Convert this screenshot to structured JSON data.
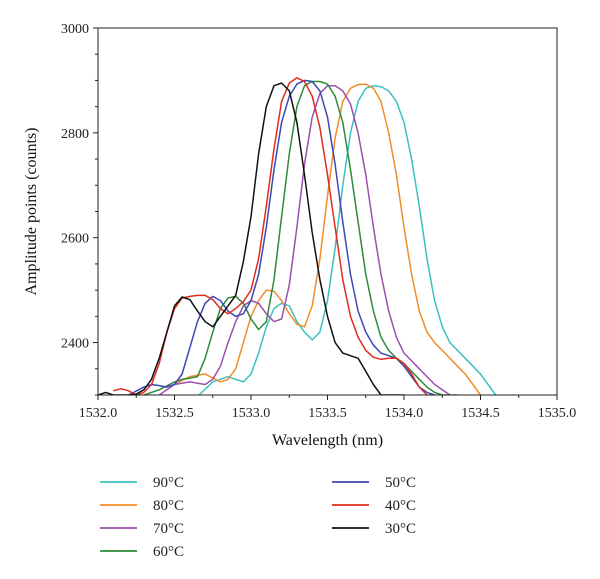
{
  "chart_data": {
    "type": "line",
    "title": "",
    "xlabel": "Wavelength (nm)",
    "ylabel": "Amplitude points (counts)",
    "xlim": [
      1532.0,
      1535.0
    ],
    "ylim": [
      2300,
      3000
    ],
    "xticks": [
      1532.0,
      1532.5,
      1533.0,
      1533.5,
      1534.0,
      1534.5,
      1535.0
    ],
    "xtick_labels": [
      "1532.0",
      "1532.5",
      "1533.0",
      "1533.5",
      "1534.0",
      "1534.5",
      "1535.0"
    ],
    "yticks": [
      2400,
      2600,
      2800,
      3000
    ],
    "ytick_labels": [
      "2400",
      "2600",
      "2800",
      "3000"
    ],
    "grid": false,
    "legend_placement": "below",
    "series": [
      {
        "name": "90°C",
        "color": "#3cc0c0",
        "x": [
          1532.66,
          1532.75,
          1532.85,
          1532.9,
          1532.95,
          1533.0,
          1533.05,
          1533.1,
          1533.15,
          1533.2,
          1533.25,
          1533.3,
          1533.35,
          1533.4,
          1533.45,
          1533.5,
          1533.55,
          1533.6,
          1533.65,
          1533.7,
          1533.75,
          1533.8,
          1533.85,
          1533.9,
          1533.95,
          1534.0,
          1534.05,
          1534.1,
          1534.15,
          1534.2,
          1534.25,
          1534.3,
          1534.35,
          1534.4,
          1534.45,
          1534.5,
          1534.55,
          1534.6
        ],
        "y": [
          2300,
          2325,
          2335,
          2330,
          2325,
          2340,
          2380,
          2430,
          2465,
          2475,
          2470,
          2440,
          2420,
          2405,
          2420,
          2480,
          2580,
          2700,
          2800,
          2860,
          2885,
          2890,
          2888,
          2880,
          2860,
          2820,
          2750,
          2660,
          2560,
          2480,
          2430,
          2400,
          2385,
          2370,
          2355,
          2340,
          2320,
          2300
        ]
      },
      {
        "name": "80°C",
        "color": "#f28c28",
        "x": [
          1532.5,
          1532.6,
          1532.7,
          1532.8,
          1532.85,
          1532.9,
          1532.95,
          1533.0,
          1533.05,
          1533.1,
          1533.15,
          1533.2,
          1533.25,
          1533.3,
          1533.35,
          1533.4,
          1533.45,
          1533.5,
          1533.55,
          1533.6,
          1533.65,
          1533.7,
          1533.75,
          1533.8,
          1533.85,
          1533.9,
          1533.95,
          1534.0,
          1534.05,
          1534.1,
          1534.15,
          1534.2,
          1534.25,
          1534.3,
          1534.35,
          1534.4,
          1534.45,
          1534.5
        ],
        "y": [
          2320,
          2335,
          2340,
          2325,
          2330,
          2350,
          2400,
          2450,
          2480,
          2500,
          2498,
          2480,
          2455,
          2435,
          2430,
          2470,
          2560,
          2680,
          2790,
          2860,
          2885,
          2892,
          2893,
          2885,
          2860,
          2800,
          2720,
          2620,
          2530,
          2460,
          2420,
          2400,
          2385,
          2370,
          2355,
          2340,
          2320,
          2300
        ]
      },
      {
        "name": "70°C",
        "color": "#9b4fb0",
        "x": [
          1532.4,
          1532.5,
          1532.6,
          1532.7,
          1532.75,
          1532.8,
          1532.85,
          1532.9,
          1532.95,
          1533.0,
          1533.05,
          1533.1,
          1533.15,
          1533.2,
          1533.25,
          1533.3,
          1533.35,
          1533.4,
          1533.45,
          1533.5,
          1533.55,
          1533.6,
          1533.65,
          1533.7,
          1533.75,
          1533.8,
          1533.85,
          1533.9,
          1533.95,
          1534.0,
          1534.05,
          1534.1,
          1534.15,
          1534.2,
          1534.25,
          1534.3,
          1534.35
        ],
        "y": [
          2300,
          2320,
          2325,
          2320,
          2330,
          2355,
          2400,
          2440,
          2470,
          2480,
          2475,
          2455,
          2440,
          2445,
          2510,
          2620,
          2740,
          2830,
          2875,
          2890,
          2890,
          2880,
          2855,
          2800,
          2720,
          2620,
          2530,
          2460,
          2410,
          2380,
          2365,
          2350,
          2335,
          2320,
          2310,
          2300,
          2300
        ]
      },
      {
        "name": "60°C",
        "color": "#2e8b3a",
        "x": [
          1532.3,
          1532.4,
          1532.5,
          1532.55,
          1532.6,
          1532.65,
          1532.7,
          1532.75,
          1532.8,
          1532.85,
          1532.9,
          1532.95,
          1533.0,
          1533.05,
          1533.1,
          1533.15,
          1533.2,
          1533.25,
          1533.3,
          1533.35,
          1533.4,
          1533.45,
          1533.5,
          1533.55,
          1533.6,
          1533.65,
          1533.7,
          1533.75,
          1533.8,
          1533.85,
          1533.9,
          1533.95,
          1534.0,
          1534.05,
          1534.1,
          1534.15,
          1534.2,
          1534.25,
          1534.3
        ],
        "y": [
          2300,
          2310,
          2325,
          2330,
          2332,
          2335,
          2370,
          2420,
          2465,
          2485,
          2488,
          2475,
          2445,
          2425,
          2440,
          2520,
          2640,
          2760,
          2850,
          2890,
          2898,
          2898,
          2893,
          2870,
          2820,
          2730,
          2630,
          2530,
          2460,
          2410,
          2385,
          2370,
          2360,
          2345,
          2330,
          2315,
          2305,
          2300,
          2300
        ]
      },
      {
        "name": "50°C",
        "color": "#3d47b5",
        "x": [
          1532.2,
          1532.3,
          1532.35,
          1532.4,
          1532.45,
          1532.5,
          1532.55,
          1532.6,
          1532.65,
          1532.7,
          1532.75,
          1532.8,
          1532.85,
          1532.9,
          1532.95,
          1533.0,
          1533.05,
          1533.1,
          1533.15,
          1533.2,
          1533.25,
          1533.3,
          1533.35,
          1533.4,
          1533.45,
          1533.5,
          1533.55,
          1533.6,
          1533.65,
          1533.7,
          1533.75,
          1533.8,
          1533.85,
          1533.9,
          1533.95,
          1534.0,
          1534.05,
          1534.1,
          1534.15,
          1534.2
        ],
        "y": [
          2300,
          2315,
          2320,
          2318,
          2315,
          2320,
          2340,
          2390,
          2440,
          2475,
          2488,
          2480,
          2460,
          2450,
          2455,
          2480,
          2530,
          2620,
          2730,
          2820,
          2870,
          2893,
          2900,
          2898,
          2880,
          2830,
          2740,
          2630,
          2530,
          2460,
          2420,
          2395,
          2380,
          2375,
          2370,
          2355,
          2335,
          2315,
          2305,
          2300
        ]
      },
      {
        "name": "40°C",
        "color": "#e02b1e",
        "x": [
          1532.1,
          1532.15,
          1532.2,
          1532.25,
          1532.3,
          1532.35,
          1532.4,
          1532.45,
          1532.5,
          1532.55,
          1532.6,
          1532.65,
          1532.7,
          1532.75,
          1532.8,
          1532.85,
          1532.9,
          1532.95,
          1533.0,
          1533.05,
          1533.1,
          1533.15,
          1533.2,
          1533.25,
          1533.3,
          1533.35,
          1533.4,
          1533.45,
          1533.5,
          1533.55,
          1533.6,
          1533.65,
          1533.7,
          1533.75,
          1533.8,
          1533.85,
          1533.9,
          1533.95,
          1534.0,
          1534.05,
          1534.1,
          1534.15
        ],
        "y": [
          2308,
          2312,
          2308,
          2300,
          2305,
          2320,
          2360,
          2420,
          2465,
          2485,
          2488,
          2490,
          2490,
          2482,
          2465,
          2455,
          2465,
          2478,
          2500,
          2560,
          2660,
          2770,
          2860,
          2895,
          2905,
          2898,
          2870,
          2810,
          2720,
          2620,
          2520,
          2450,
          2410,
          2385,
          2372,
          2368,
          2370,
          2370,
          2360,
          2340,
          2315,
          2300
        ]
      },
      {
        "name": "30°C",
        "color": "#111111",
        "x": [
          1532.0,
          1532.05,
          1532.1,
          1532.15,
          1532.2,
          1532.25,
          1532.3,
          1532.35,
          1532.4,
          1532.45,
          1532.5,
          1532.55,
          1532.6,
          1532.65,
          1532.7,
          1532.75,
          1532.8,
          1532.85,
          1532.9,
          1532.95,
          1533.0,
          1533.05,
          1533.1,
          1533.15,
          1533.2,
          1533.25,
          1533.3,
          1533.35,
          1533.4,
          1533.45,
          1533.5,
          1533.55,
          1533.6,
          1533.65,
          1533.7,
          1533.75,
          1533.8,
          1533.85,
          1533.9,
          1533.95,
          1534.0
        ],
        "y": [
          2300,
          2305,
          2300,
          2300,
          2300,
          2302,
          2310,
          2330,
          2370,
          2420,
          2470,
          2487,
          2482,
          2460,
          2440,
          2430,
          2450,
          2470,
          2490,
          2555,
          2640,
          2760,
          2850,
          2890,
          2895,
          2880,
          2820,
          2720,
          2610,
          2520,
          2450,
          2400,
          2380,
          2375,
          2370,
          2345,
          2320,
          2300,
          2300,
          2300,
          2300
        ]
      }
    ]
  }
}
